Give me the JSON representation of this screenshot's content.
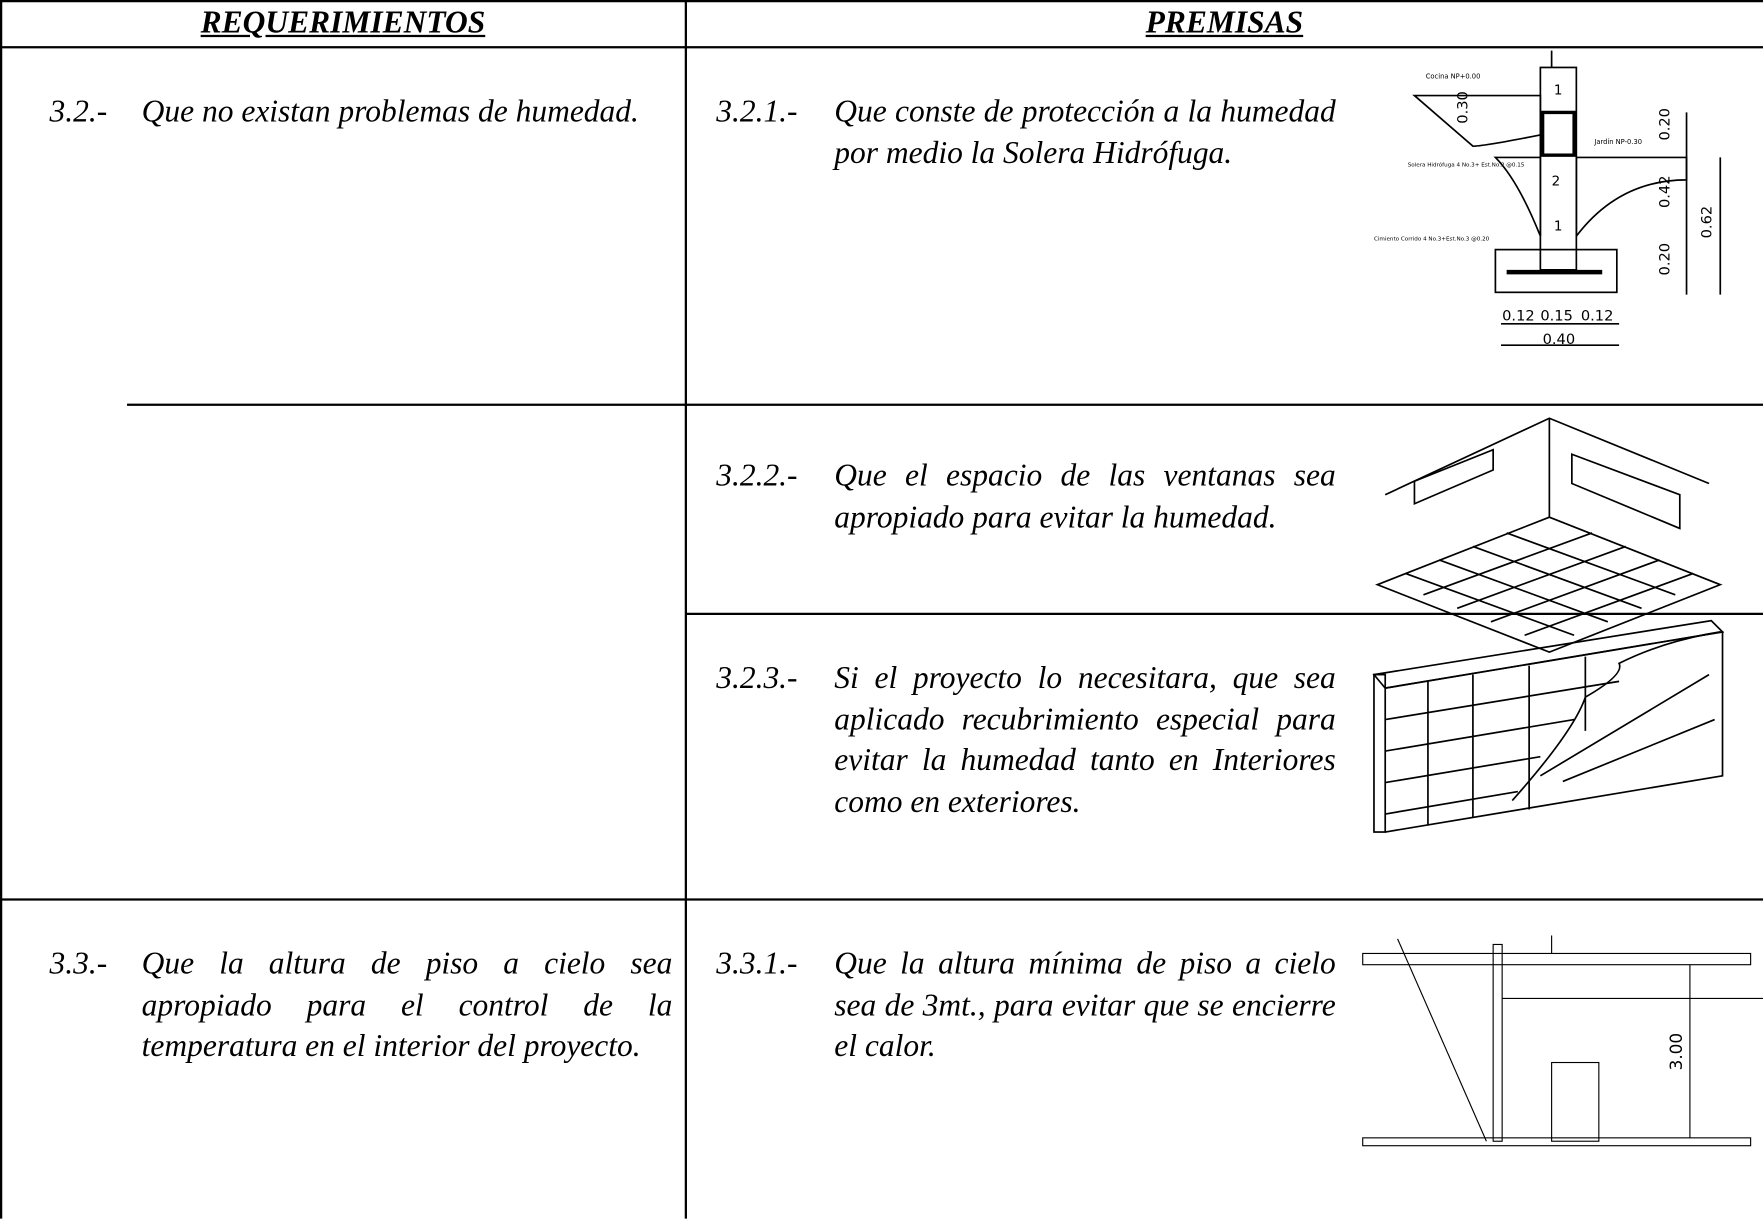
{
  "header": {
    "requerimientos": "REQUERIMIENTOS",
    "premisas": "PREMISAS"
  },
  "rows": [
    {
      "requirement": {
        "number": "3.2.-",
        "text": "Que no existan problemas de humedad."
      },
      "premises": [
        {
          "number": "3.2.1.-",
          "text": "Que conste de protección a la humedad por medio la Solera Hidrófuga."
        },
        {
          "number": "3.2.2.-",
          "text": "Que el espacio de las ventanas sea apropiado para evitar la humedad."
        },
        {
          "number": "3.2.3.-",
          "text": "Si el proyecto lo necesitara, que sea aplicado recubrimiento especial para evitar la humedad tanto en Interiores como en exteriores."
        }
      ]
    },
    {
      "requirement": {
        "number": "3.3.-",
        "text": "Que la altura de piso a cielo sea apropiado para el control de la temperatura en el interior del proyecto."
      },
      "premises": [
        {
          "number": "3.3.1.-",
          "text": "Que la  altura mínima de piso a cielo sea de 3mt., para evitar que se encierre el calor."
        }
      ]
    }
  ],
  "figures": {
    "foundation": [
      "Cocina NP+0.00",
      "Jardín NP-0.30",
      "Solera Hidrófuga 4 No.3+ Est.No.2 @0.15",
      "Cimiento Corrido 4 No.3+Est.No.3 @0.20",
      "1",
      "2",
      "1",
      "0.30",
      "0.20",
      "0.42",
      "0.62",
      "0.20",
      "0.12",
      "0.15",
      "0.12",
      "0.40"
    ],
    "height": [
      "3.00"
    ]
  }
}
